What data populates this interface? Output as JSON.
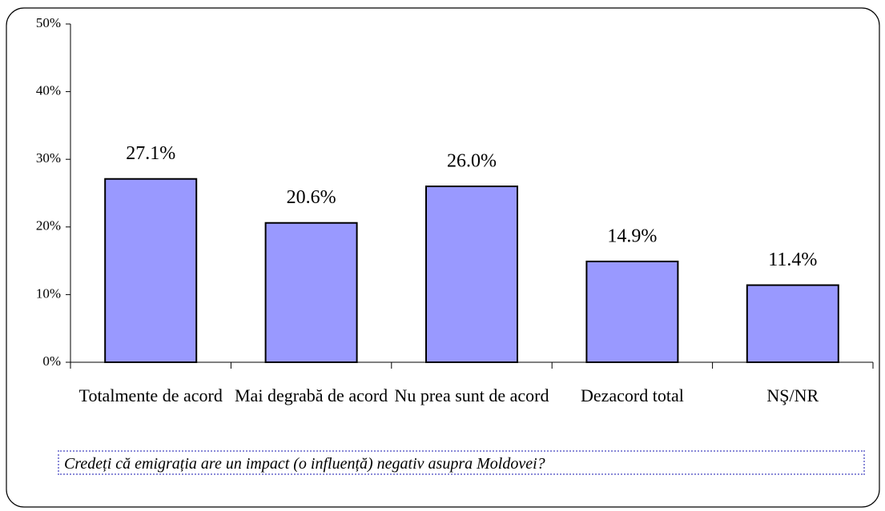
{
  "chart_data": {
    "type": "bar",
    "categories": [
      "Totalmente de acord",
      "Mai degrabă de acord",
      "Nu prea sunt de acord",
      "Dezacord total",
      "NŞ/NR"
    ],
    "values": [
      27.1,
      20.6,
      26.0,
      14.9,
      11.4
    ],
    "value_labels": [
      "27.1%",
      "20.6%",
      "26.0%",
      "14.9%",
      "11.4%"
    ],
    "color": "#9999ff",
    "ylim": [
      0,
      50
    ],
    "yticks": [
      {
        "value": 0,
        "label": "0%"
      },
      {
        "value": 10,
        "label": "10%"
      },
      {
        "value": 20,
        "label": "20%"
      },
      {
        "value": 30,
        "label": "30%"
      },
      {
        "value": 40,
        "label": "40%"
      },
      {
        "value": 50,
        "label": "50%"
      }
    ],
    "caption": "Credeți că emigrația are un impact (o influență) negativ asupra Moldovei?"
  }
}
